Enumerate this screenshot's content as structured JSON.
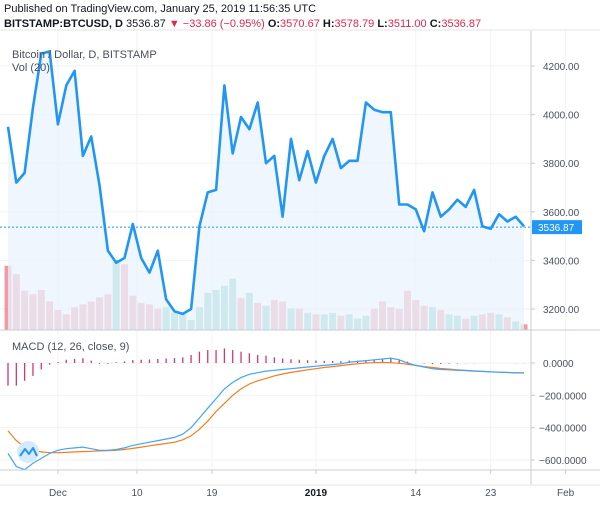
{
  "header": {
    "published": "Published on TradingView.com, January 25, 2019 11:56:35 UTC",
    "symbol": "BITSTAMP:BTCUSD, D",
    "last": "3536.87",
    "change": "▼ −33.86 (−0.95%)",
    "o_label": "O:",
    "o_value": "3570.67",
    "h_label": "H:",
    "h_value": "3578.79",
    "l_label": "L:",
    "l_value": "3511.00",
    "c_label": "C:",
    "c_value": "3536.87"
  },
  "legend": {
    "title": "Bitcoin / Dollar, D, BITSTAMP",
    "volume": "Vol (20)",
    "macd": "MACD (12, 26, close, 9)"
  },
  "colors": {
    "price_line": "#2196f3",
    "area_fill": "#eaf3fd",
    "vol_up": "#7ccfc4",
    "vol_down": "#ef9aa7",
    "macd": "#42a5f5",
    "signal": "#f57c1f",
    "hist_up": "#c2185b",
    "hist_down": "#c2185b",
    "last_price_label": "#2196f3"
  },
  "chart_data": [
    {
      "type": "line",
      "title": "Bitcoin / Dollar, D, BITSTAMP",
      "last_price": 3536.87,
      "ylim": [
        3100,
        4400
      ],
      "y_ticks": [
        3200,
        3400,
        3600,
        3800,
        4000,
        4200
      ],
      "y_tick_labels": [
        "3200.00",
        "3400.00",
        "3600.00",
        "3800.00",
        "4000.00",
        "4200.00"
      ],
      "x_tick_labels": [
        "Dec",
        "10",
        "19",
        "2019",
        "14",
        "23",
        "Feb"
      ],
      "x_tick_bold": [
        false,
        false,
        false,
        true,
        false,
        false,
        false
      ],
      "x_tick_index": [
        6,
        15.5,
        24.5,
        37,
        49,
        58,
        67
      ],
      "values": [
        3950,
        3720,
        3760,
        4030,
        4250,
        4260,
        3960,
        4120,
        4180,
        3830,
        3910,
        3710,
        3440,
        3390,
        3410,
        3550,
        3410,
        3350,
        3440,
        3240,
        3190,
        3180,
        3200,
        3540,
        3680,
        3690,
        4120,
        3840,
        3990,
        3940,
        4050,
        3800,
        3830,
        3580,
        3900,
        3730,
        3850,
        3720,
        3830,
        3900,
        3780,
        3810,
        3810,
        4050,
        4020,
        4010,
        4010,
        3630,
        3630,
        3610,
        3520,
        3680,
        3580,
        3610,
        3650,
        3620,
        3690,
        3540,
        3530,
        3590,
        3560,
        3580,
        3540
      ]
    },
    {
      "type": "bar",
      "title": "Vol (20)",
      "values": [
        90,
        78,
        55,
        50,
        56,
        40,
        28,
        22,
        32,
        36,
        40,
        46,
        50,
        98,
        92,
        48,
        38,
        36,
        30,
        32,
        24,
        22,
        14,
        32,
        52,
        56,
        62,
        72,
        45,
        52,
        38,
        34,
        42,
        40,
        30,
        30,
        24,
        22,
        22,
        24,
        20,
        22,
        16,
        20,
        30,
        40,
        32,
        30,
        55,
        42,
        34,
        32,
        28,
        22,
        20,
        16,
        20,
        22,
        24,
        22,
        18,
        12,
        8
      ],
      "up": [
        false,
        false,
        false,
        false,
        false,
        false,
        false,
        false,
        false,
        false,
        false,
        false,
        false,
        true,
        false,
        false,
        false,
        false,
        false,
        true,
        true,
        true,
        true,
        true,
        true,
        true,
        true,
        true,
        false,
        true,
        false,
        true,
        false,
        false,
        true,
        false,
        true,
        false,
        true,
        true,
        false,
        true,
        true,
        true,
        false,
        false,
        false,
        false,
        false,
        false,
        false,
        true,
        false,
        true,
        true,
        false,
        true,
        false,
        false,
        true,
        false,
        true,
        false
      ]
    },
    {
      "type": "line",
      "title": "MACD (12, 26, close, 9)",
      "ylim": [
        -700,
        50
      ],
      "y_ticks": [
        0,
        -200,
        -400,
        -600
      ],
      "y_tick_labels": [
        "0.0000",
        "−200.0000",
        "−400.0000",
        "−600.0000"
      ],
      "series": [
        {
          "name": "MACD",
          "values": [
            -560,
            -640,
            -660,
            -620,
            -590,
            -560,
            -540,
            -530,
            -525,
            -520,
            -530,
            -540,
            -540,
            -535,
            -525,
            -510,
            -500,
            -490,
            -480,
            -470,
            -460,
            -440,
            -400,
            -340,
            -280,
            -220,
            -160,
            -120,
            -90,
            -70,
            -60,
            -50,
            -45,
            -40,
            -35,
            -30,
            -25,
            -20,
            -15,
            -10,
            -5,
            5,
            10,
            15,
            20,
            25,
            30,
            20,
            0,
            -15,
            -25,
            -35,
            -40,
            -42,
            -45,
            -47,
            -50,
            -52,
            -55,
            -57,
            -59,
            -61,
            -62
          ]
        },
        {
          "name": "Signal",
          "values": [
            -420,
            -480,
            -520,
            -540,
            -550,
            -555,
            -555,
            -553,
            -550,
            -548,
            -546,
            -544,
            -542,
            -540,
            -535,
            -528,
            -520,
            -512,
            -505,
            -498,
            -490,
            -475,
            -450,
            -410,
            -360,
            -300,
            -250,
            -200,
            -160,
            -130,
            -110,
            -95,
            -80,
            -68,
            -58,
            -50,
            -42,
            -35,
            -28,
            -22,
            -16,
            -10,
            -5,
            0,
            2,
            3,
            2,
            -2,
            -8,
            -15,
            -22,
            -28,
            -34,
            -38,
            -42,
            -46,
            -49,
            -52,
            -55,
            -57,
            -59,
            -60,
            -61
          ]
        },
        {
          "name": "Histogram",
          "values": [
            -140,
            -140,
            -110,
            -80,
            -40,
            -10,
            5,
            20,
            25,
            30,
            15,
            -5,
            -5,
            5,
            10,
            18,
            20,
            22,
            25,
            28,
            30,
            35,
            50,
            70,
            80,
            80,
            90,
            80,
            70,
            60,
            50,
            45,
            35,
            28,
            23,
            20,
            17,
            15,
            13,
            12,
            11,
            15,
            15,
            15,
            18,
            22,
            28,
            22,
            8,
            0,
            -3,
            -7,
            -6,
            -4,
            -3,
            -1,
            -1,
            0,
            0,
            0,
            0,
            -1,
            -1
          ]
        }
      ]
    }
  ]
}
